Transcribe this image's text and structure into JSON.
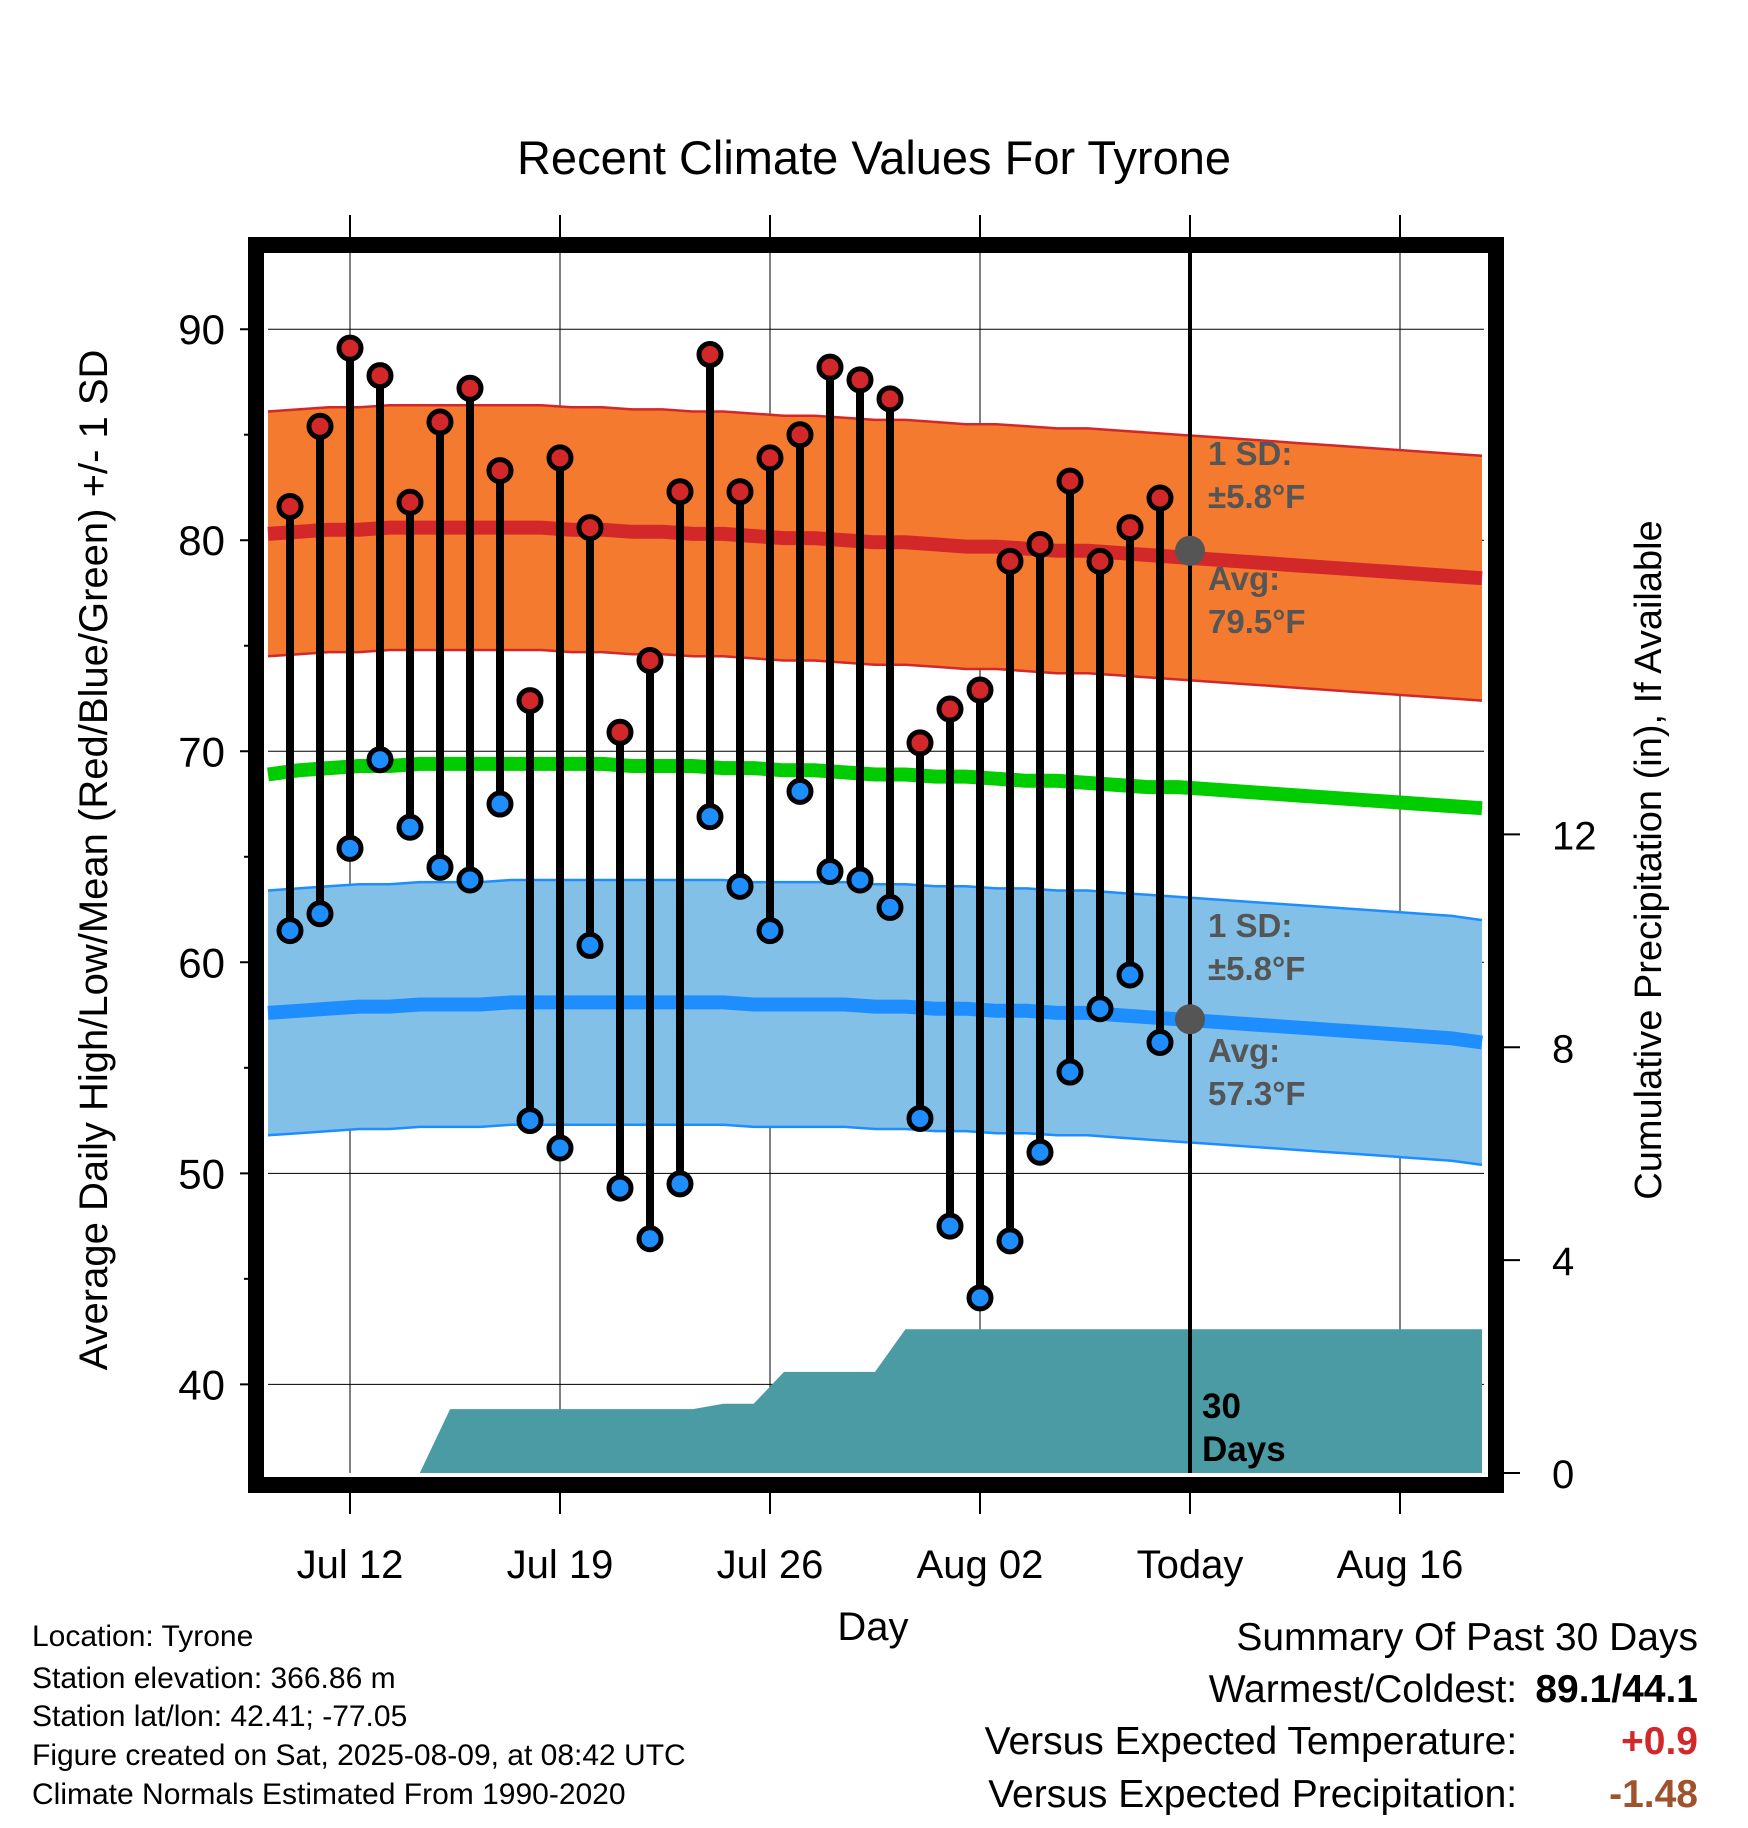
{
  "title": "Recent Climate Values For Tyrone",
  "chart_data": {
    "type": "line",
    "title": "Recent Climate Values For Tyrone",
    "xlabel": "Day",
    "ylabel": "Average Daily High/Low/Mean (Red/Blue/Green) +/- 1 SD",
    "y2label": "Cumulative Precipitation (in), If Available",
    "ylim": [
      35.8,
      93.8
    ],
    "y2lim": [
      0,
      23
    ],
    "x_tick_labels": [
      "Jul 12",
      "Jul 19",
      "Jul 26",
      "Aug 02",
      "Today",
      "Aug 16"
    ],
    "y_ticks": [
      40,
      50,
      60,
      70,
      80,
      90
    ],
    "y2_ticks": [
      0,
      4,
      8,
      12
    ],
    "grid": true,
    "today_label": "Today",
    "days": [
      "Jul 10",
      "Jul 11",
      "Jul 12",
      "Jul 13",
      "Jul 14",
      "Jul 15",
      "Jul 16",
      "Jul 17",
      "Jul 18",
      "Jul 19",
      "Jul 20",
      "Jul 21",
      "Jul 22",
      "Jul 23",
      "Jul 24",
      "Jul 25",
      "Jul 26",
      "Jul 27",
      "Jul 28",
      "Jul 29",
      "Jul 30",
      "Jul 31",
      "Aug 01",
      "Aug 02",
      "Aug 03",
      "Aug 04",
      "Aug 05",
      "Aug 06",
      "Aug 07",
      "Aug 08"
    ],
    "daily_high": [
      81.6,
      85.4,
      89.1,
      87.8,
      81.8,
      85.6,
      87.2,
      83.3,
      72.4,
      83.9,
      80.6,
      70.9,
      74.3,
      82.3,
      88.8,
      82.3,
      83.9,
      85.0,
      88.2,
      87.6,
      86.7,
      70.4,
      72.0,
      72.9,
      79.0,
      79.8,
      82.8,
      79.0,
      80.6,
      82.0
    ],
    "daily_low": [
      61.5,
      62.3,
      65.4,
      69.6,
      66.4,
      64.5,
      63.9,
      67.5,
      52.5,
      51.2,
      60.8,
      49.3,
      46.9,
      49.5,
      66.9,
      63.6,
      61.5,
      68.1,
      64.3,
      63.9,
      62.6,
      52.6,
      47.5,
      44.1,
      46.8,
      51.0,
      54.8,
      57.8,
      59.4,
      56.2
    ],
    "normal_high": [
      80.3,
      80.4,
      80.5,
      80.5,
      80.6,
      80.6,
      80.6,
      80.6,
      80.6,
      80.6,
      80.5,
      80.5,
      80.4,
      80.4,
      80.3,
      80.3,
      80.2,
      80.1,
      80.1,
      80.0,
      79.9,
      79.9,
      79.8,
      79.7,
      79.7,
      79.6,
      79.5,
      79.5,
      79.4,
      79.3,
      79.2,
      79.1,
      79.0,
      78.9,
      78.8,
      78.7,
      78.6,
      78.5,
      78.4,
      78.3,
      78.2
    ],
    "normal_low": [
      57.6,
      57.7,
      57.8,
      57.9,
      57.9,
      58.0,
      58.0,
      58.0,
      58.1,
      58.1,
      58.1,
      58.1,
      58.1,
      58.1,
      58.1,
      58.1,
      58.0,
      58.0,
      58.0,
      58.0,
      57.9,
      57.9,
      57.8,
      57.8,
      57.7,
      57.7,
      57.6,
      57.6,
      57.5,
      57.4,
      57.3,
      57.2,
      57.1,
      57.0,
      56.9,
      56.8,
      56.7,
      56.6,
      56.5,
      56.4,
      56.2
    ],
    "normal_mean": [
      68.9,
      69.1,
      69.2,
      69.3,
      69.3,
      69.4,
      69.4,
      69.4,
      69.4,
      69.4,
      69.4,
      69.4,
      69.3,
      69.3,
      69.3,
      69.2,
      69.2,
      69.1,
      69.1,
      69.0,
      68.9,
      68.9,
      68.8,
      68.8,
      68.7,
      68.6,
      68.6,
      68.5,
      68.4,
      68.3,
      68.3,
      68.2,
      68.1,
      68.0,
      67.9,
      67.8,
      67.7,
      67.6,
      67.5,
      67.4,
      67.3
    ],
    "sd": 5.8,
    "today_avg_high": 79.5,
    "today_avg_low": 57.3,
    "cumulative_precip": [
      0,
      0,
      0,
      0,
      0,
      0,
      1.2,
      1.2,
      1.2,
      1.2,
      1.2,
      1.2,
      1.2,
      1.2,
      1.2,
      1.3,
      1.3,
      1.9,
      1.9,
      1.9,
      1.9,
      2.7,
      2.7,
      2.7,
      2.7,
      2.7,
      2.7,
      2.7,
      2.7,
      2.7,
      2.7,
      2.7,
      2.7,
      2.7,
      2.7,
      2.7,
      2.7,
      2.7,
      2.7,
      2.7,
      2.7
    ],
    "precip_label": [
      "30",
      "Days"
    ],
    "high_annotation": {
      "sd": [
        "1 SD:",
        "±5.8°F"
      ],
      "avg": [
        "Avg:",
        "79.5°F"
      ]
    },
    "low_annotation": {
      "sd": [
        "1 SD:",
        "±5.8°F"
      ],
      "avg": [
        "Avg:",
        "57.3°F"
      ]
    },
    "colors": {
      "high_band": "#f47a30",
      "high_line": "#d3282a",
      "low_band": "#82c0e8",
      "low_line": "#1e8eff",
      "mean_line": "#00cc00",
      "precip": "#4a9ba4",
      "annotation": "#555555"
    }
  },
  "footer": {
    "location": "Location: Tyrone",
    "elevation": "Station elevation: 366.86 m",
    "latlon": "Station lat/lon: 42.41; -77.05",
    "created": "Figure created on Sat, 2025-08-09, at 08:42 UTC",
    "normals": "Climate Normals Estimated From 1990-2020"
  },
  "summary": {
    "heading": "Summary Of Past 30 Days",
    "warmest_label": "Warmest/Coldest:",
    "warmest_value": "89.1/44.1",
    "temp_label": "Versus Expected Temperature:",
    "temp_value": "+0.9",
    "temp_color": "#d3282a",
    "precip_label": "Versus Expected Precipitation:",
    "precip_value": "-1.48",
    "precip_color": "#a0522d"
  }
}
